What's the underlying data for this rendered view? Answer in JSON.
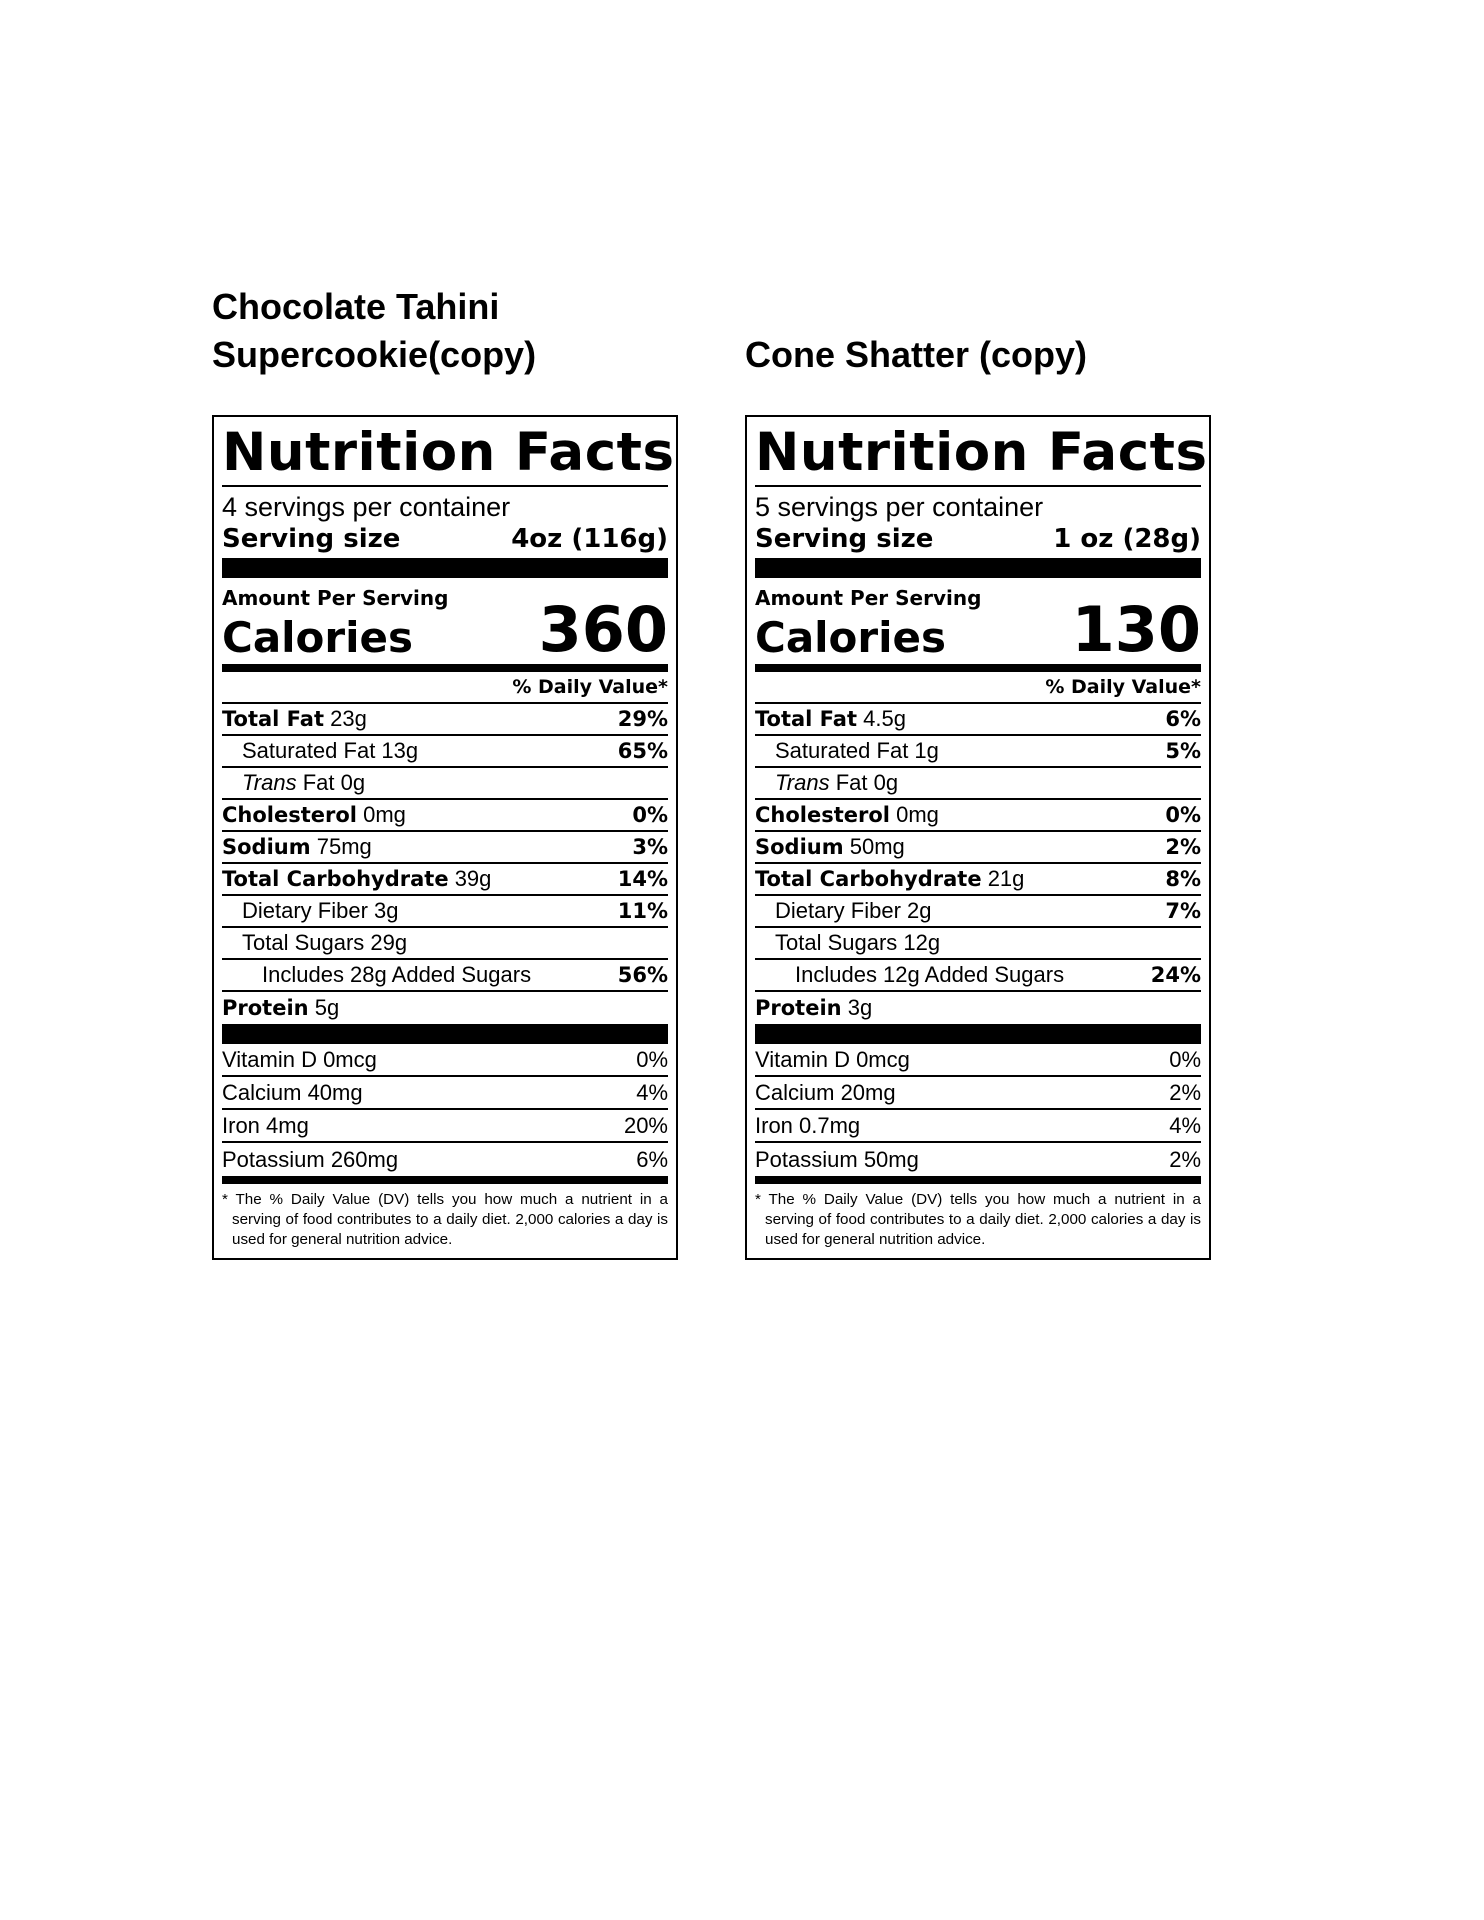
{
  "products": [
    {
      "title_line1": "Chocolate Tahini",
      "title_line2": "Supercookie(copy)",
      "nutrition_facts_heading": "Nutrition Facts",
      "servings_per_container": "4 servings per container",
      "serving_size_label": "Serving size",
      "serving_size_value": "4oz (116g)",
      "amount_per_serving": "Amount Per Serving",
      "calories_label": "Calories",
      "calories_value": "360",
      "daily_value_header": "% Daily Value*",
      "total_fat_label": "Total Fat",
      "total_fat_amount": "23g",
      "total_fat_dv": "29%",
      "saturated_fat_label": "Saturated Fat 13g",
      "saturated_fat_dv": "65%",
      "trans_fat_prefix": "Trans",
      "trans_fat_rest": "Fat 0g",
      "cholesterol_label": "Cholesterol",
      "cholesterol_amount": "0mg",
      "cholesterol_dv": "0%",
      "sodium_label": "Sodium",
      "sodium_amount": "75mg",
      "sodium_dv": "3%",
      "total_carb_label": "Total Carbohydrate",
      "total_carb_amount": "39g",
      "total_carb_dv": "14%",
      "fiber_label": "Dietary Fiber 3g",
      "fiber_dv": "11%",
      "sugars_label": "Total Sugars 29g",
      "added_sugars_label": "Includes 28g Added Sugars",
      "added_sugars_dv": "56%",
      "protein_label": "Protein",
      "protein_amount": "5g",
      "vitamin_d_label": "Vitamin D 0mcg",
      "vitamin_d_dv": "0%",
      "calcium_label": "Calcium 40mg",
      "calcium_dv": "4%",
      "iron_label": "Iron 4mg",
      "iron_dv": "20%",
      "potassium_label": "Potassium 260mg",
      "potassium_dv": "6%",
      "footnote": "* The % Daily Value (DV) tells you how much a nutrient in a serving of food contributes to a daily diet. 2,000 calories a day is used for general nutrition advice."
    },
    {
      "title_line1": "",
      "title_line2": "Cone Shatter (copy)",
      "nutrition_facts_heading": "Nutrition Facts",
      "servings_per_container": "5 servings per container",
      "serving_size_label": "Serving size",
      "serving_size_value": "1 oz (28g)",
      "amount_per_serving": "Amount Per Serving",
      "calories_label": "Calories",
      "calories_value": "130",
      "daily_value_header": "% Daily Value*",
      "total_fat_label": "Total Fat",
      "total_fat_amount": "4.5g",
      "total_fat_dv": "6%",
      "saturated_fat_label": "Saturated Fat 1g",
      "saturated_fat_dv": "5%",
      "trans_fat_prefix": "Trans",
      "trans_fat_rest": "Fat 0g",
      "cholesterol_label": "Cholesterol",
      "cholesterol_amount": "0mg",
      "cholesterol_dv": "0%",
      "sodium_label": "Sodium",
      "sodium_amount": "50mg",
      "sodium_dv": "2%",
      "total_carb_label": "Total Carbohydrate",
      "total_carb_amount": "21g",
      "total_carb_dv": "8%",
      "fiber_label": "Dietary Fiber 2g",
      "fiber_dv": "7%",
      "sugars_label": "Total Sugars 12g",
      "added_sugars_label": "Includes 12g Added Sugars",
      "added_sugars_dv": "24%",
      "protein_label": "Protein",
      "protein_amount": "3g",
      "vitamin_d_label": "Vitamin D 0mcg",
      "vitamin_d_dv": "0%",
      "calcium_label": "Calcium 20mg",
      "calcium_dv": "2%",
      "iron_label": "Iron 0.7mg",
      "iron_dv": "4%",
      "potassium_label": "Potassium 50mg",
      "potassium_dv": "2%",
      "footnote": "* The % Daily Value (DV) tells you how much a nutrient in a serving of food contributes to a daily diet. 2,000 calories a day is used for general nutrition advice."
    }
  ]
}
